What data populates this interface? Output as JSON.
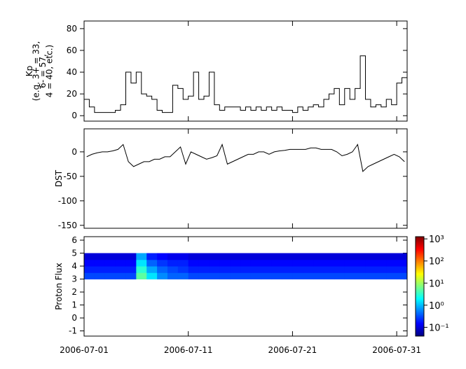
{
  "chart_data": [
    {
      "type": "step",
      "ylabel": [
        "Kp",
        "(e.g. 3+ = 33,",
        "6- = 57,",
        "4 = 40, etc.)"
      ],
      "color": "#000000",
      "xlim": [
        "2006-07-01",
        "2006-08-01"
      ],
      "values": [
        15,
        8,
        3,
        3,
        3,
        3,
        5,
        10,
        40,
        30,
        40,
        20,
        18,
        15,
        5,
        3,
        3,
        28,
        25,
        15,
        18,
        40,
        15,
        18,
        40,
        10,
        5,
        8,
        8,
        8,
        5,
        8,
        5,
        8,
        5,
        8,
        5,
        8,
        5,
        5,
        3,
        8,
        5,
        8,
        10,
        8,
        15,
        20,
        25,
        10,
        25,
        15,
        25,
        55,
        15,
        8,
        10,
        8,
        15,
        10,
        30,
        35
      ],
      "ylim": [
        -5,
        87
      ],
      "yticks": [
        0,
        20,
        40,
        60,
        80
      ]
    },
    {
      "type": "line",
      "ylabel": "DST",
      "color": "#000000",
      "xlim": [
        "2006-07-01",
        "2006-08-01"
      ],
      "values": [
        -10,
        -5,
        -2,
        0,
        0,
        2,
        5,
        15,
        -20,
        -30,
        -25,
        -20,
        -20,
        -15,
        -15,
        -10,
        -10,
        0,
        10,
        -25,
        0,
        -5,
        -10,
        -15,
        -12,
        -8,
        15,
        -25,
        -20,
        -15,
        -10,
        -5,
        -5,
        0,
        0,
        -5,
        0,
        2,
        3,
        5,
        5,
        5,
        5,
        8,
        8,
        5,
        5,
        5,
        0,
        -8,
        -5,
        0,
        15,
        -40,
        -30,
        -25,
        -20,
        -15,
        -10,
        -5,
        -10,
        -20
      ],
      "ylim": [
        -156,
        47
      ],
      "yticks": [
        0,
        -50,
        -100,
        -150
      ]
    },
    {
      "type": "heatmap",
      "ylabel": "Proton Flux",
      "colormap": "jet",
      "color_scale": "log",
      "xlim": [
        "2006-07-01",
        "2006-08-01"
      ],
      "xticks": [
        "2006-07-01",
        "2006-07-11",
        "2006-07-21",
        "2006-07-31"
      ],
      "y_edges": [
        3,
        3.5,
        4,
        4.5,
        5
      ],
      "values": [
        [
          0.3,
          0.3,
          0.3,
          0.3,
          0.3,
          5,
          1.5,
          0.6,
          0.4,
          0.4,
          0.3,
          0.3,
          0.3,
          0.3,
          0.3,
          0.3,
          0.3,
          0.3,
          0.3,
          0.3,
          0.3,
          0.3,
          0.3,
          0.3,
          0.3,
          0.3,
          0.3,
          0.3,
          0.3,
          0.3,
          0.3
        ],
        [
          0.2,
          0.2,
          0.2,
          0.2,
          0.2,
          3,
          0.8,
          0.4,
          0.3,
          0.25,
          0.2,
          0.2,
          0.2,
          0.2,
          0.2,
          0.2,
          0.2,
          0.2,
          0.2,
          0.2,
          0.2,
          0.2,
          0.2,
          0.2,
          0.2,
          0.2,
          0.2,
          0.2,
          0.2,
          0.2,
          0.2
        ],
        [
          0.15,
          0.15,
          0.15,
          0.15,
          0.15,
          1.5,
          0.4,
          0.25,
          0.2,
          0.2,
          0.15,
          0.15,
          0.15,
          0.15,
          0.15,
          0.15,
          0.15,
          0.15,
          0.15,
          0.15,
          0.15,
          0.15,
          0.15,
          0.15,
          0.15,
          0.15,
          0.15,
          0.15,
          0.15,
          0.15,
          0.15
        ],
        [
          0.1,
          0.1,
          0.1,
          0.1,
          0.1,
          0.8,
          0.2,
          0.15,
          0.12,
          0.12,
          0.1,
          0.1,
          0.1,
          0.1,
          0.1,
          0.1,
          0.1,
          0.1,
          0.1,
          0.1,
          0.1,
          0.1,
          0.1,
          0.1,
          0.1,
          0.1,
          0.1,
          0.1,
          0.1,
          0.1,
          0.1
        ]
      ],
      "ylim": [
        -1.4,
        6.27
      ],
      "yticks": [
        -1,
        0,
        1,
        2,
        3,
        4,
        5,
        6
      ],
      "clim": [
        0.04,
        1259
      ],
      "cticks": [
        {
          "value": 0.1,
          "label": "10⁻¹"
        },
        {
          "value": 1,
          "label": "10⁰"
        },
        {
          "value": 10,
          "label": "10¹"
        },
        {
          "value": 100,
          "label": "10²"
        },
        {
          "value": 1000,
          "label": "10³"
        }
      ]
    }
  ]
}
